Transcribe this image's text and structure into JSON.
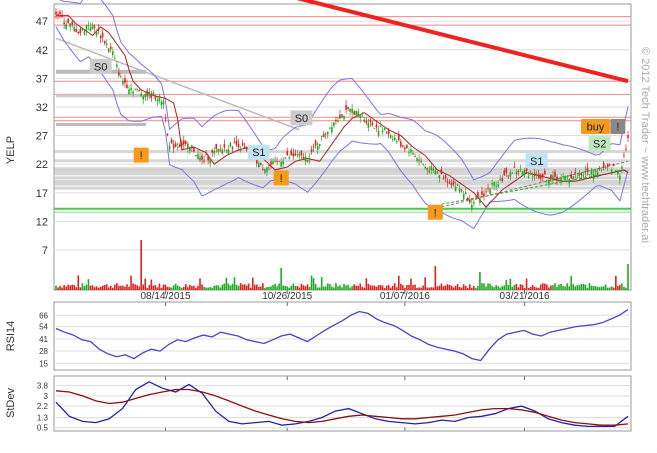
{
  "chart_data": [
    {
      "type": "candlestick",
      "symbol_label": "YELP",
      "watermark": "© 2012 Tech Trader ~ www.techtrader.ai",
      "x_ticks": [
        "08/14/2015",
        "10/26/2015",
        "01/07/2016",
        "03/21/2016"
      ],
      "y_ticks": [
        7,
        12,
        17,
        22,
        27,
        32,
        37,
        42,
        47
      ],
      "ylim": [
        0,
        50
      ],
      "close_series": [
        {
          "i": 0,
          "v": 48.5
        },
        {
          "i": 4,
          "v": 47.0
        },
        {
          "i": 8,
          "v": 46.0
        },
        {
          "i": 12,
          "v": 45.0
        },
        {
          "i": 16,
          "v": 46.5
        },
        {
          "i": 20,
          "v": 45.5
        },
        {
          "i": 24,
          "v": 43.5
        },
        {
          "i": 28,
          "v": 41.5
        },
        {
          "i": 30,
          "v": 39.0
        },
        {
          "i": 32,
          "v": 37.0
        },
        {
          "i": 36,
          "v": 35.5
        },
        {
          "i": 42,
          "v": 34.5
        },
        {
          "i": 48,
          "v": 34.0
        },
        {
          "i": 53,
          "v": 33.0
        },
        {
          "i": 56,
          "v": 25.0
        },
        {
          "i": 62,
          "v": 25.5
        },
        {
          "i": 68,
          "v": 24.5
        },
        {
          "i": 72,
          "v": 22.5
        },
        {
          "i": 78,
          "v": 24.0
        },
        {
          "i": 84,
          "v": 25.0
        },
        {
          "i": 90,
          "v": 25.5
        },
        {
          "i": 96,
          "v": 23.5
        },
        {
          "i": 102,
          "v": 21.5
        },
        {
          "i": 108,
          "v": 22.0
        },
        {
          "i": 112,
          "v": 23.0
        },
        {
          "i": 118,
          "v": 23.5
        },
        {
          "i": 124,
          "v": 23.0
        },
        {
          "i": 130,
          "v": 26.0
        },
        {
          "i": 136,
          "v": 29.0
        },
        {
          "i": 140,
          "v": 30.5
        },
        {
          "i": 146,
          "v": 31.5
        },
        {
          "i": 152,
          "v": 30.0
        },
        {
          "i": 158,
          "v": 28.5
        },
        {
          "i": 164,
          "v": 27.5
        },
        {
          "i": 170,
          "v": 25.5
        },
        {
          "i": 176,
          "v": 24.0
        },
        {
          "i": 182,
          "v": 21.5
        },
        {
          "i": 188,
          "v": 20.5
        },
        {
          "i": 194,
          "v": 19.0
        },
        {
          "i": 200,
          "v": 17.5
        },
        {
          "i": 206,
          "v": 15.0
        },
        {
          "i": 210,
          "v": 16.5
        },
        {
          "i": 214,
          "v": 18.0
        },
        {
          "i": 220,
          "v": 19.5
        },
        {
          "i": 226,
          "v": 21.0
        },
        {
          "i": 232,
          "v": 20.5
        },
        {
          "i": 238,
          "v": 20.0
        },
        {
          "i": 244,
          "v": 19.5
        },
        {
          "i": 250,
          "v": 19.5
        },
        {
          "i": 256,
          "v": 20.0
        },
        {
          "i": 262,
          "v": 20.5
        },
        {
          "i": 268,
          "v": 21.0
        },
        {
          "i": 274,
          "v": 21.5
        },
        {
          "i": 278,
          "v": 20.5
        },
        {
          "i": 282,
          "v": 26.5
        }
      ],
      "n_bars": 283,
      "annotations": [
        {
          "text": "S0",
          "i": 22,
          "v": 39.0,
          "color": "#cccccc"
        },
        {
          "text": "S1",
          "i": 100,
          "v": 24.0,
          "color": "#bfe3f0"
        },
        {
          "text": "S0",
          "i": 121,
          "v": 30.0,
          "color": "#cccccc"
        },
        {
          "text": "S1",
          "i": 237,
          "v": 22.5,
          "color": "#bfe3f0"
        },
        {
          "text": "S2",
          "i": 268,
          "v": 25.5,
          "color": "#bfe8bf"
        },
        {
          "text": "buy",
          "i": 266,
          "v": 28.5,
          "color": "#f59a1d"
        },
        {
          "text": "!",
          "i": 42,
          "v": 23.5,
          "color": "#f59a1d"
        },
        {
          "text": "!",
          "i": 111,
          "v": 19.5,
          "color": "#f59a1d"
        },
        {
          "text": "!",
          "i": 187,
          "v": 13.5,
          "color": "#f59a1d"
        },
        {
          "text": "!",
          "i": 277,
          "v": 28.5,
          "color": "#888888"
        }
      ],
      "colors": {
        "up": "#22aa22",
        "down": "#dd2222",
        "band": "#7777dd",
        "trend": "#ee2222"
      }
    },
    {
      "type": "line",
      "ylabel": "RSI14",
      "y_ticks": [
        15,
        28,
        41,
        54,
        66
      ],
      "ylim": [
        10,
        78
      ],
      "series": [
        {
          "values": [
            52,
            48,
            45,
            40,
            38,
            30,
            25,
            22,
            24,
            20,
            26,
            30,
            28,
            35,
            40,
            38,
            42,
            45,
            43,
            48,
            46,
            44,
            40,
            38,
            36,
            40,
            44,
            46,
            42,
            38,
            44,
            50,
            55,
            60,
            66,
            70,
            68,
            62,
            58,
            55,
            50,
            44,
            40,
            35,
            32,
            30,
            28,
            25,
            20,
            18,
            30,
            40,
            46,
            48,
            50,
            46,
            44,
            48,
            50,
            52,
            54,
            55,
            56,
            58,
            62,
            66,
            72
          ]
        }
      ]
    },
    {
      "type": "line",
      "ylabel": "StDev",
      "y_ticks": [
        0.5,
        1.3,
        2.2,
        3.0,
        3.8
      ],
      "ylim": [
        0.4,
        4.4
      ],
      "series": [
        {
          "color": "#2222aa",
          "values": [
            2.5,
            1.4,
            1.0,
            0.9,
            1.2,
            2.0,
            3.5,
            4.1,
            3.6,
            3.3,
            3.9,
            3.2,
            1.8,
            1.0,
            0.8,
            0.9,
            1.0,
            0.7,
            0.8,
            1.0,
            1.3,
            1.8,
            2.0,
            1.6,
            1.2,
            1.0,
            0.9,
            0.8,
            0.9,
            1.1,
            1.0,
            1.3,
            1.4,
            1.6,
            2.0,
            2.2,
            1.8,
            1.2,
            0.9,
            0.7,
            0.6,
            0.6,
            0.6,
            1.4
          ]
        },
        {
          "color": "#881111",
          "values": [
            3.4,
            3.3,
            3.0,
            2.6,
            2.4,
            2.5,
            2.8,
            3.1,
            3.3,
            3.5,
            3.5,
            3.3,
            3.0,
            2.6,
            2.2,
            1.8,
            1.5,
            1.2,
            1.0,
            0.9,
            1.0,
            1.2,
            1.4,
            1.5,
            1.4,
            1.3,
            1.2,
            1.2,
            1.3,
            1.4,
            1.5,
            1.7,
            1.9,
            2.0,
            2.0,
            1.9,
            1.7,
            1.4,
            1.1,
            0.9,
            0.8,
            0.7,
            0.7,
            0.8
          ]
        }
      ]
    }
  ]
}
